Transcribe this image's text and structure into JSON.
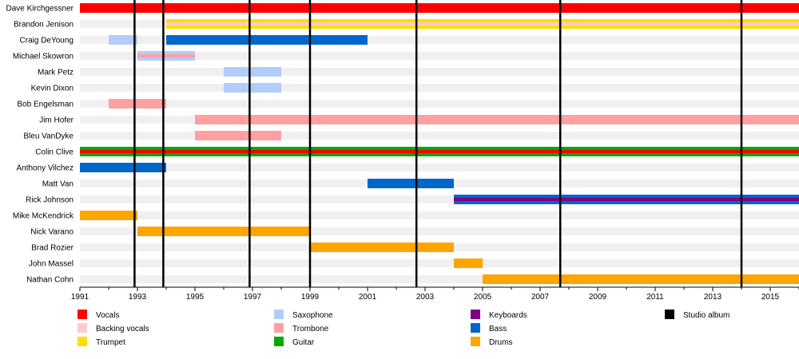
{
  "chart_data": {
    "type": "timeline",
    "x_range": [
      1991,
      2016
    ],
    "x_ticks": [
      "1991",
      "1993",
      "1995",
      "1997",
      "1999",
      "2001",
      "2003",
      "2005",
      "2007",
      "2009",
      "2011",
      "2013",
      "2015"
    ],
    "members": [
      {
        "name": "Dave Kirchgessner",
        "bars": [
          {
            "start": 1991,
            "end": 2016,
            "role": "Vocals"
          }
        ]
      },
      {
        "name": "Brandon Jenison",
        "bars": [
          {
            "start": 1994,
            "end": 2016,
            "role": "Trumpet",
            "secondary": "Backing vocals"
          }
        ]
      },
      {
        "name": "Craig DeYoung",
        "bars": [
          {
            "start": 1992,
            "end": 1993,
            "role": "Saxophone"
          },
          {
            "start": 1994,
            "end": 2001,
            "role": "Bass"
          }
        ]
      },
      {
        "name": "Michael Skowron",
        "bars": [
          {
            "start": 1993,
            "end": 1995,
            "role": "Saxophone",
            "secondary": "Trombone"
          }
        ]
      },
      {
        "name": "Mark Petz",
        "bars": [
          {
            "start": 1996,
            "end": 1998,
            "role": "Saxophone"
          }
        ]
      },
      {
        "name": "Kevin Dixon",
        "bars": [
          {
            "start": 1996,
            "end": 1998,
            "role": "Saxophone"
          }
        ]
      },
      {
        "name": "Bob Engelsman",
        "bars": [
          {
            "start": 1992,
            "end": 1994,
            "role": "Trombone"
          }
        ]
      },
      {
        "name": "Jim Hofer",
        "bars": [
          {
            "start": 1995,
            "end": 2016,
            "role": "Trombone"
          }
        ]
      },
      {
        "name": "Bleu VanDyke",
        "bars": [
          {
            "start": 1995,
            "end": 1998,
            "role": "Trombone"
          }
        ]
      },
      {
        "name": "Colin Clive",
        "bars": [
          {
            "start": 1991,
            "end": 2016,
            "role": "Guitar",
            "secondary": "Vocals"
          }
        ]
      },
      {
        "name": "Anthony Vilchez",
        "bars": [
          {
            "start": 1991,
            "end": 1994,
            "role": "Bass"
          }
        ]
      },
      {
        "name": "Matt Van",
        "bars": [
          {
            "start": 2001,
            "end": 2004,
            "role": "Bass"
          }
        ]
      },
      {
        "name": "Rick Johnson",
        "bars": [
          {
            "start": 2004,
            "end": 2016,
            "role": "Bass",
            "secondary": "Keyboards"
          }
        ]
      },
      {
        "name": "Mike McKendrick",
        "bars": [
          {
            "start": 1991,
            "end": 1993,
            "role": "Drums"
          }
        ]
      },
      {
        "name": "Nick Varano",
        "bars": [
          {
            "start": 1993,
            "end": 1999,
            "role": "Drums"
          }
        ]
      },
      {
        "name": "Brad Rozier",
        "bars": [
          {
            "start": 1999,
            "end": 2004,
            "role": "Drums"
          }
        ]
      },
      {
        "name": "John Massel",
        "bars": [
          {
            "start": 2004,
            "end": 2005,
            "role": "Drums"
          }
        ]
      },
      {
        "name": "Nathan Cohn",
        "bars": [
          {
            "start": 2005,
            "end": 2016,
            "role": "Drums"
          }
        ]
      }
    ],
    "studio_albums": [
      1992.9,
      1993.9,
      1996.9,
      1999.0,
      2002.7,
      2007.7,
      2014.0
    ],
    "legend": [
      {
        "label": "Vocals",
        "color": "#ff0000"
      },
      {
        "label": "Backing vocals",
        "color": "#ffcccc"
      },
      {
        "label": "Trumpet",
        "color": "#ffdd00"
      },
      {
        "label": "Saxophone",
        "color": "#b3ccff"
      },
      {
        "label": "Trombone",
        "color": "#ffa0a0"
      },
      {
        "label": "Guitar",
        "color": "#00aa00"
      },
      {
        "label": "Keyboards",
        "color": "#800080"
      },
      {
        "label": "Bass",
        "color": "#0066cc"
      },
      {
        "label": "Drums",
        "color": "#ffa500"
      },
      {
        "label": "Studio album",
        "color": "#000000"
      }
    ]
  }
}
